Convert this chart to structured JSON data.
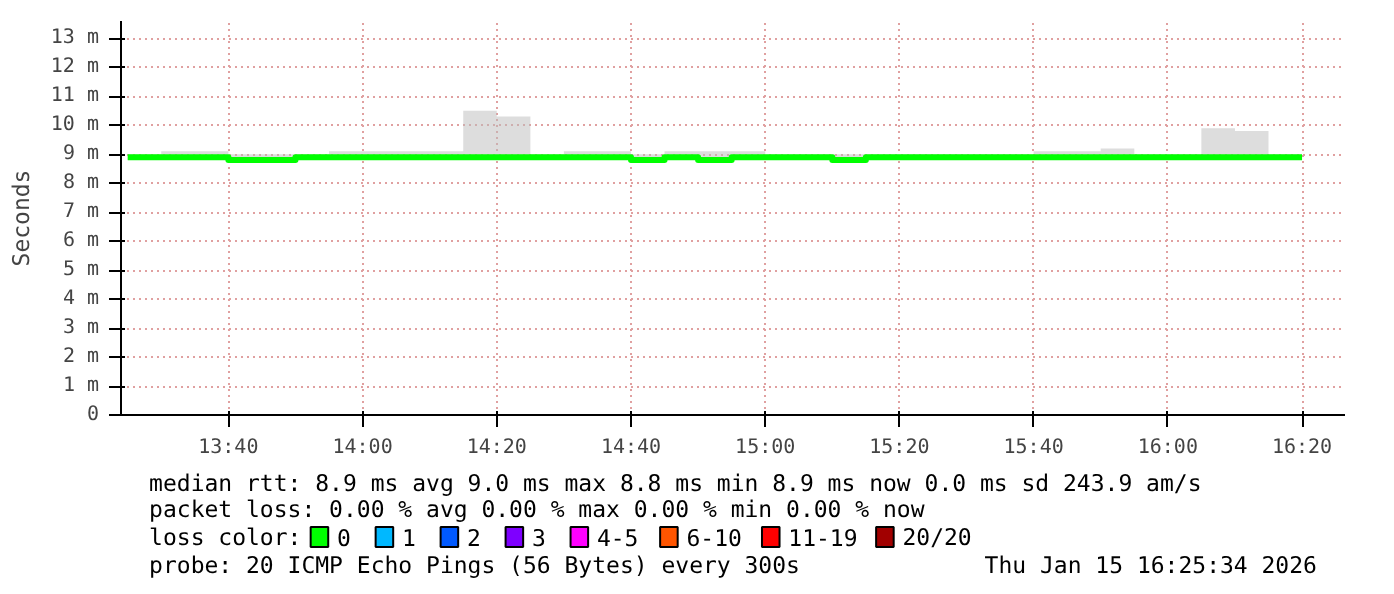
{
  "chart_data": {
    "type": "line",
    "ylabel": "Seconds",
    "x": [
      13.4167,
      13.5,
      13.5833,
      13.6667,
      13.75,
      13.8333,
      13.9167,
      14.0,
      14.0833,
      14.1667,
      14.25,
      14.3333,
      14.4167,
      14.5,
      14.5833,
      14.6667,
      14.75,
      14.8333,
      14.9167,
      15.0,
      15.0833,
      15.1667,
      15.25,
      15.3333,
      15.4167,
      15.5,
      15.5833,
      15.6667,
      15.75,
      15.8333,
      15.9167,
      16.0,
      16.0833,
      16.1667,
      16.25,
      16.3333
    ],
    "series": [
      {
        "name": "0",
        "color": "#00ff00",
        "values": [
          8.9,
          8.9,
          8.9,
          8.8,
          8.8,
          8.9,
          8.9,
          8.9,
          8.9,
          8.9,
          8.9,
          8.9,
          8.9,
          8.9,
          8.9,
          8.8,
          8.9,
          8.8,
          8.9,
          8.9,
          8.9,
          8.8,
          8.9,
          8.9,
          8.9,
          8.9,
          8.9,
          8.9,
          8.9,
          8.9,
          8.9,
          8.9,
          8.9,
          8.9,
          8.9,
          8.9
        ],
        "lower": [
          8.8,
          8.8,
          8.8,
          8.7,
          8.8,
          8.8,
          8.8,
          8.8,
          8.8,
          8.8,
          8.8,
          8.8,
          8.8,
          8.8,
          8.8,
          8.7,
          8.8,
          8.7,
          8.8,
          8.8,
          8.8,
          8.7,
          8.8,
          8.8,
          8.8,
          8.8,
          8.8,
          8.8,
          8.8,
          8.8,
          8.8,
          8.8,
          8.8,
          8.8,
          8.8,
          8.8
        ],
        "upper": [
          9.0,
          9.1,
          9.1,
          9.0,
          9.0,
          9.0,
          9.1,
          9.1,
          9.1,
          9.1,
          10.5,
          10.3,
          9.0,
          9.1,
          9.1,
          9.0,
          9.1,
          9.1,
          9.1,
          9.0,
          9.0,
          9.0,
          9.0,
          9.0,
          9.0,
          9.0,
          9.0,
          9.1,
          9.1,
          9.2,
          9.0,
          9.0,
          9.9,
          9.8,
          9.0,
          9.0
        ]
      },
      {
        "name": "1",
        "color": "#00b8ff",
        "values": [
          null,
          null,
          null,
          null,
          null,
          null,
          null,
          null,
          null,
          null,
          null,
          null,
          null,
          null,
          null,
          null,
          null,
          null,
          null,
          null,
          null,
          null,
          null,
          null,
          null,
          null,
          null,
          null,
          null,
          null,
          null,
          null,
          null,
          null,
          null,
          null
        ]
      },
      {
        "name": "2",
        "color": "#0059ff",
        "values": [
          null,
          null,
          null,
          null,
          null,
          null,
          null,
          null,
          null,
          null,
          null,
          null,
          null,
          null,
          null,
          null,
          null,
          null,
          null,
          null,
          null,
          null,
          null,
          null,
          null,
          null,
          null,
          null,
          null,
          null,
          null,
          null,
          null,
          null,
          null,
          null
        ]
      },
      {
        "name": "3",
        "color": "#7e00ff",
        "values": [
          null,
          null,
          null,
          null,
          null,
          null,
          null,
          null,
          null,
          null,
          null,
          null,
          null,
          null,
          null,
          null,
          null,
          null,
          null,
          null,
          null,
          null,
          null,
          null,
          null,
          null,
          null,
          null,
          null,
          null,
          null,
          null,
          null,
          null,
          null,
          null
        ]
      },
      {
        "name": "4-5",
        "color": "#ff00ff",
        "values": [
          null,
          null,
          null,
          null,
          null,
          null,
          null,
          null,
          null,
          null,
          null,
          null,
          null,
          null,
          null,
          null,
          null,
          null,
          null,
          null,
          null,
          null,
          null,
          null,
          null,
          null,
          null,
          null,
          null,
          null,
          null,
          null,
          null,
          null,
          null,
          null
        ]
      },
      {
        "name": "6-10",
        "color": "#ff5500",
        "values": [
          null,
          null,
          null,
          null,
          null,
          null,
          null,
          null,
          null,
          null,
          null,
          null,
          null,
          null,
          null,
          null,
          null,
          null,
          null,
          null,
          null,
          null,
          null,
          null,
          null,
          null,
          null,
          null,
          null,
          null,
          null,
          null,
          null,
          null,
          null,
          null
        ]
      },
      {
        "name": "11-19",
        "color": "#ff0000",
        "values": [
          null,
          null,
          null,
          null,
          null,
          null,
          null,
          null,
          null,
          null,
          null,
          null,
          null,
          null,
          null,
          null,
          null,
          null,
          null,
          null,
          null,
          null,
          null,
          null,
          null,
          null,
          null,
          null,
          null,
          null,
          null,
          null,
          null,
          null,
          null,
          null
        ]
      },
      {
        "name": "20/20",
        "color": "#a10000",
        "values": [
          null,
          null,
          null,
          null,
          null,
          null,
          null,
          null,
          null,
          null,
          null,
          null,
          null,
          null,
          null,
          null,
          null,
          null,
          null,
          null,
          null,
          null,
          null,
          null,
          null,
          null,
          null,
          null,
          null,
          null,
          null,
          null,
          null,
          null,
          null,
          null
        ]
      }
    ],
    "xlim": [
      13.4,
      16.44
    ],
    "xticks": [
      {
        "value": 13.6667,
        "label": "13:40"
      },
      {
        "value": 14.0,
        "label": "14:00"
      },
      {
        "value": 14.3333,
        "label": "14:20"
      },
      {
        "value": 14.6667,
        "label": "14:40"
      },
      {
        "value": 15.0,
        "label": "15:00"
      },
      {
        "value": 15.3333,
        "label": "15:20"
      },
      {
        "value": 15.6667,
        "label": "15:40"
      },
      {
        "value": 16.0,
        "label": "16:00"
      },
      {
        "value": 16.3333,
        "label": "16:20"
      }
    ],
    "ylim": [
      0,
      13.6
    ],
    "yticks": [
      0,
      {
        "value": 1,
        "label": "1 m"
      },
      {
        "value": 2,
        "label": "2 m"
      },
      {
        "value": 3,
        "label": "3 m"
      },
      {
        "value": 4,
        "label": "4 m"
      },
      {
        "value": 5,
        "label": "5 m"
      },
      {
        "value": 6,
        "label": "6 m"
      },
      {
        "value": 7,
        "label": "7 m"
      },
      {
        "value": 8,
        "label": "8 m"
      },
      {
        "value": 9,
        "label": "9 m"
      },
      {
        "value": 10,
        "label": "10 m"
      },
      {
        "value": 11,
        "label": "11 m"
      },
      {
        "value": 12,
        "label": "12 m"
      },
      {
        "value": 13,
        "label": "13 m"
      }
    ],
    "grid": true,
    "legend": "bottom",
    "legend_title": "loss color:",
    "annotations": [
      "median rtt:  8.9 ms avg  9.0 ms max  8.8 ms min  8.9 ms now  0.0 ms sd  243.9   am/s",
      "packet loss: 0.00 % avg  0.00 % max  0.00 % min  0.00 % now",
      "probe:       20 ICMP Echo Pings (56 Bytes) every 300s",
      "Thu Jan 15 16:25:34 2026"
    ]
  }
}
